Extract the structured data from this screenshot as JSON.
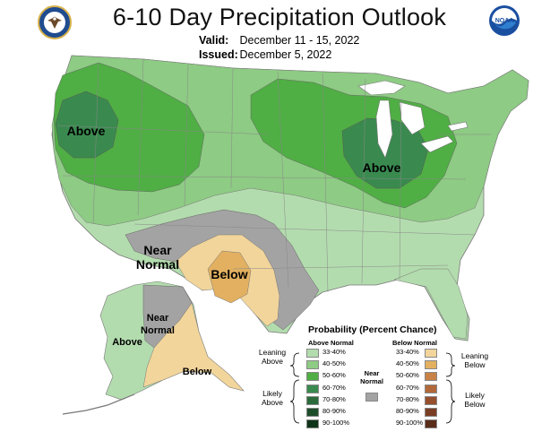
{
  "header": {
    "title": "6-10 Day Precipitation Outlook",
    "valid_label": "Valid:",
    "valid_value": "December 11 - 15, 2022",
    "issued_label": "Issued:",
    "issued_value": "December 5, 2022",
    "left_logo": "department-of-commerce-seal",
    "right_logo": "noaa-logo",
    "noaa_text": "NOAA"
  },
  "map_labels": {
    "above_west": "Above",
    "above_midwest": "Above",
    "near_normal_southwest_1": "Near",
    "near_normal_southwest_2": "Normal",
    "below_texas": "Below",
    "alaska_above": "Above",
    "alaska_near_1": "Near",
    "alaska_near_2": "Normal",
    "alaska_below": "Below"
  },
  "legend": {
    "title": "Probability (Percent Chance)",
    "above_header": "Above Normal",
    "below_header": "Below Normal",
    "near_label_1": "Near",
    "near_label_2": "Normal",
    "leaning_above_1": "Leaning",
    "leaning_above_2": "Above",
    "likely_above_1": "Likely",
    "likely_above_2": "Above",
    "leaning_below_1": "Leaning",
    "leaning_below_2": "Below",
    "likely_below_1": "Likely",
    "likely_below_2": "Below",
    "above_bins": [
      "33-40%",
      "40-50%",
      "50-60%",
      "60-70%",
      "70-80%",
      "80-90%",
      "90-100%"
    ],
    "below_bins": [
      "33-40%",
      "40-50%",
      "50-60%",
      "60-70%",
      "70-80%",
      "80-90%",
      "90-100%"
    ],
    "above_colors": [
      "#b3dcae",
      "#8ecb84",
      "#4fae44",
      "#3a8a4f",
      "#2b6b3b",
      "#1d4d2a",
      "#0f3318"
    ],
    "below_colors": [
      "#f2d59b",
      "#e2b060",
      "#c98245",
      "#b2693a",
      "#96502d",
      "#7a3e24",
      "#5a2c1a"
    ],
    "near_color": "#a3a3a3"
  }
}
